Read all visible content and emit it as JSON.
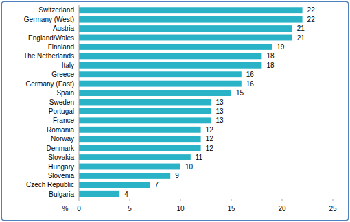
{
  "chart_data": {
    "type": "bar",
    "orientation": "horizontal",
    "categories": [
      "Switzerland",
      "Germany (West)",
      "Austria",
      "England/Wales",
      "Finnland",
      "The Netherlands",
      "Italy",
      "Greece",
      "Germany (East)",
      "Spain",
      "Sweden",
      "Portugal",
      "France",
      "Romania",
      "Norway",
      "Denmark",
      "Slovakia",
      "Hungary",
      "Slovenia",
      "Czech Republic",
      "Bulgaria"
    ],
    "values": [
      22,
      22,
      21,
      21,
      19,
      18,
      18,
      16,
      16,
      15,
      13,
      13,
      13,
      12,
      12,
      12,
      11,
      10,
      9,
      7,
      4
    ],
    "color": "#2ab3c7",
    "xlabel": "%",
    "xlim": [
      0,
      25
    ],
    "xticks": [
      0,
      5,
      10,
      15,
      20,
      25
    ],
    "grid": false,
    "data_labels": true
  }
}
